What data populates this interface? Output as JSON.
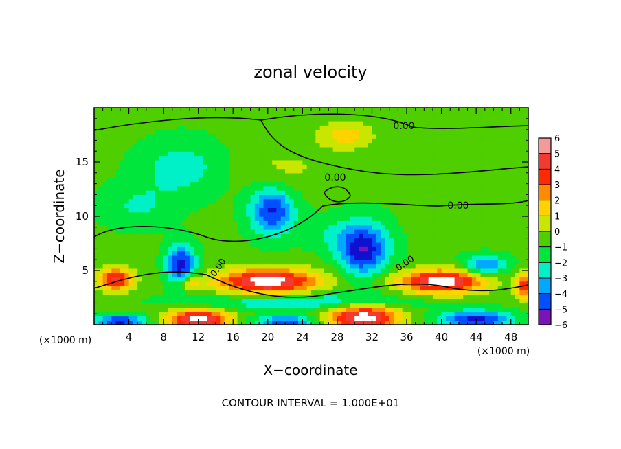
{
  "chart_data": {
    "type": "heatmap",
    "title": "zonal velocity",
    "xlabel": "X−coordinate",
    "ylabel": "Z−coordinate",
    "x_unit_left": "(×1000 m)",
    "x_unit_right": "(×1000 m)",
    "footer": "CONTOUR INTERVAL = 1.000E+01",
    "xlim": [
      0,
      50
    ],
    "ylim": [
      0,
      20
    ],
    "x_ticks": [
      4,
      8,
      12,
      16,
      20,
      24,
      28,
      32,
      36,
      40,
      44,
      48
    ],
    "x_tick_labels": [
      "4",
      "8",
      "12",
      "16",
      "20",
      "24",
      "28",
      "32",
      "36",
      "40",
      "44",
      "48"
    ],
    "y_ticks": [
      5,
      10,
      15
    ],
    "y_tick_labels": [
      "5",
      "10",
      "15"
    ],
    "colorbar": {
      "min": -6,
      "max": 6,
      "levels": [
        6,
        5,
        4,
        3,
        2,
        1,
        0,
        -1,
        -2,
        -3,
        -4,
        -5,
        -6
      ],
      "level_labels": [
        "6",
        "5",
        "4",
        "3",
        "2",
        "1",
        "0",
        "−1",
        "−2",
        "−3",
        "−4",
        "−5",
        "−6"
      ],
      "colors": [
        "#f59a9a",
        "#f23a32",
        "#ff2a00",
        "#ff8a00",
        "#ffd200",
        "#c8e600",
        "#4fcf00",
        "#00e63c",
        "#00f0c8",
        "#00a8ff",
        "#0050ff",
        "#1010d0",
        "#7a14b8"
      ]
    },
    "contour_labels": [
      "0.00",
      "0.00",
      "0.00",
      "0.00",
      "0.00"
    ],
    "features": [
      {
        "x": 29,
        "z": 17.5,
        "v": 2.3,
        "sx": 3.2,
        "sz": 1.3
      },
      {
        "x": 22,
        "z": 14.5,
        "v": 1.0,
        "sx": 5,
        "sz": 2
      },
      {
        "x": 45,
        "z": 17,
        "v": 0.8,
        "sx": 4,
        "sz": 2
      },
      {
        "x": 10,
        "z": 14.5,
        "v": -1.8,
        "sx": 4.5,
        "sz": 2.5
      },
      {
        "x": 5,
        "z": 11,
        "v": -1.3,
        "sx": 4,
        "sz": 2
      },
      {
        "x": 20.5,
        "z": 10.5,
        "v": -4.3,
        "sx": 2.5,
        "sz": 2.2
      },
      {
        "x": 27,
        "z": 8.5,
        "v": -1.0,
        "sx": 3,
        "sz": 1.5
      },
      {
        "x": 31,
        "z": 7,
        "v": -5.2,
        "sx": 2.8,
        "sz": 2.4
      },
      {
        "x": 10,
        "z": 5.5,
        "v": -5.0,
        "sx": 1.6,
        "sz": 1.8
      },
      {
        "x": 45,
        "z": 5.5,
        "v": -3.5,
        "sx": 2.5,
        "sz": 0.9
      },
      {
        "x": 2.5,
        "z": 4.2,
        "v": 5.3,
        "sx": 2.0,
        "sz": 1.1
      },
      {
        "x": 20,
        "z": 4.0,
        "v": 6.5,
        "sx": 6.0,
        "sz": 1.2
      },
      {
        "x": 40,
        "z": 4.0,
        "v": 6.5,
        "sx": 5.0,
        "sz": 1.1
      },
      {
        "x": 11,
        "z": 3.8,
        "v": 2.5,
        "sx": 1.2,
        "sz": 0.7
      },
      {
        "x": 24,
        "z": 2.2,
        "v": -2.5,
        "sx": 12,
        "sz": 0.8
      },
      {
        "x": 12,
        "z": 0.5,
        "v": 6.5,
        "sx": 3.5,
        "sz": 0.9
      },
      {
        "x": 31,
        "z": 0.7,
        "v": 6.5,
        "sx": 4.0,
        "sz": 1.2
      },
      {
        "x": 3,
        "z": 0.3,
        "v": -4.5,
        "sx": 3,
        "sz": 0.6
      },
      {
        "x": 22,
        "z": 0.3,
        "v": -4.0,
        "sx": 3.5,
        "sz": 0.5
      },
      {
        "x": 44,
        "z": 0.5,
        "v": -4.5,
        "sx": 4,
        "sz": 0.8
      },
      {
        "x": 49.5,
        "z": 3.5,
        "v": 4.5,
        "sx": 1.0,
        "sz": 1.2
      }
    ]
  }
}
